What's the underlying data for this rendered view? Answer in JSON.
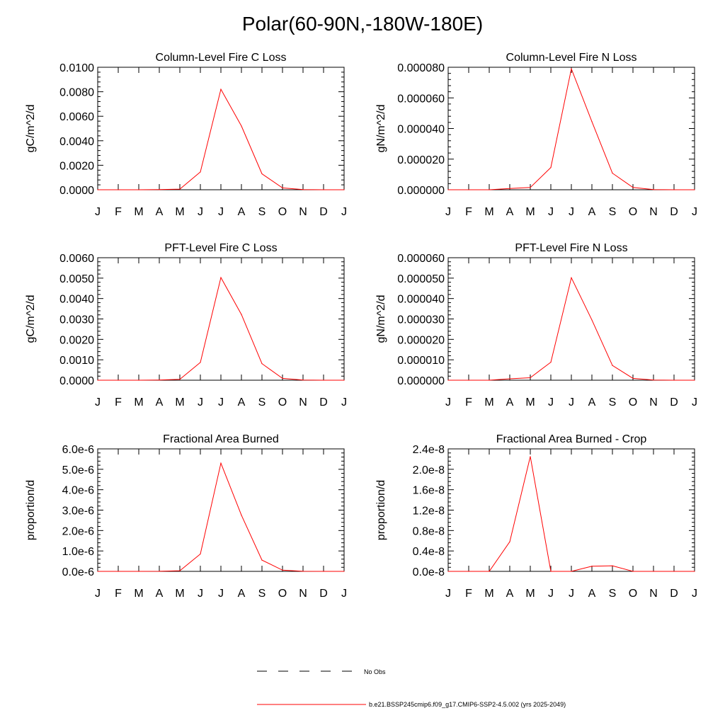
{
  "page": {
    "title": "Polar(60-90N,-180W-180E)"
  },
  "style": {
    "line_color": "#ff0000",
    "axis_color": "#000000",
    "obs_color": "#000000"
  },
  "legend": {
    "obs_label": "No Obs",
    "model_label": "b.e21.BSSP245cmip6.f09_g17.CMIP6-SSP2-4.5.002 (yrs 2025-2049)"
  },
  "chart_data": [
    {
      "type": "line",
      "title": "Column-Level Fire C Loss",
      "ylabel": "gC/m^2/d",
      "xlabel": "",
      "categories": [
        "J",
        "F",
        "M",
        "A",
        "M",
        "J",
        "J",
        "A",
        "S",
        "O",
        "N",
        "D",
        "J"
      ],
      "ylim": [
        0,
        0.01
      ],
      "yticks": [
        0,
        0.002,
        0.004,
        0.006,
        0.008,
        0.01
      ],
      "ytick_labels": [
        "0.0000",
        "0.0020",
        "0.0040",
        "0.0060",
        "0.0080",
        "0.0100"
      ],
      "series": [
        {
          "name": "b.e21.BSSP245cmip6.f09_g17.CMIP6-SSP2-4.5.002 (yrs 2025-2049)",
          "values": [
            0,
            0,
            0,
            1e-05,
            5e-05,
            0.00145,
            0.0082,
            0.0052,
            0.0013,
            0.00015,
            1e-05,
            0,
            0
          ]
        }
      ]
    },
    {
      "type": "line",
      "title": "Column-Level Fire N Loss",
      "ylabel": "gN/m^2/d",
      "xlabel": "",
      "categories": [
        "J",
        "F",
        "M",
        "A",
        "M",
        "J",
        "J",
        "A",
        "S",
        "O",
        "N",
        "D",
        "J"
      ],
      "ylim": [
        0,
        8e-05
      ],
      "yticks": [
        0,
        2e-05,
        4e-05,
        6e-05,
        8e-05
      ],
      "ytick_labels": [
        "0.000000",
        "0.000020",
        "0.000040",
        "0.000060",
        "0.000080"
      ],
      "series": [
        {
          "name": "b.e21.BSSP245cmip6.f09_g17.CMIP6-SSP2-4.5.002 (yrs 2025-2049)",
          "values": [
            0,
            0,
            0,
            8e-07,
            1.5e-06,
            1.45e-05,
            7.9e-05,
            4.45e-05,
            1.08e-05,
            1.5e-06,
            1e-07,
            0,
            0
          ]
        }
      ]
    },
    {
      "type": "line",
      "title": "PFT-Level Fire C Loss",
      "ylabel": "gC/m^2/d",
      "xlabel": "",
      "categories": [
        "J",
        "F",
        "M",
        "A",
        "M",
        "J",
        "J",
        "A",
        "S",
        "O",
        "N",
        "D",
        "J"
      ],
      "ylim": [
        0,
        0.006
      ],
      "yticks": [
        0,
        0.001,
        0.002,
        0.003,
        0.004,
        0.005,
        0.006
      ],
      "ytick_labels": [
        "0.0000",
        "0.0010",
        "0.0020",
        "0.0030",
        "0.0040",
        "0.0050",
        "0.0060"
      ],
      "series": [
        {
          "name": "b.e21.BSSP245cmip6.f09_g17.CMIP6-SSP2-4.5.002 (yrs 2025-2049)",
          "values": [
            0,
            0,
            0,
            1e-05,
            4e-05,
            0.00087,
            0.00503,
            0.00322,
            0.00081,
            9e-05,
            1e-05,
            0,
            0
          ]
        }
      ]
    },
    {
      "type": "line",
      "title": "PFT-Level Fire N Loss",
      "ylabel": "gN/m^2/d",
      "xlabel": "",
      "categories": [
        "J",
        "F",
        "M",
        "A",
        "M",
        "J",
        "J",
        "A",
        "S",
        "O",
        "N",
        "D",
        "J"
      ],
      "ylim": [
        0,
        6e-05
      ],
      "yticks": [
        0,
        1e-05,
        2e-05,
        3e-05,
        4e-05,
        5e-05,
        6e-05
      ],
      "ytick_labels": [
        "0.000000",
        "0.000010",
        "0.000020",
        "0.000030",
        "0.000040",
        "0.000050",
        "0.000060"
      ],
      "series": [
        {
          "name": "b.e21.BSSP245cmip6.f09_g17.CMIP6-SSP2-4.5.002 (yrs 2025-2049)",
          "values": [
            0,
            0,
            0,
            7e-07,
            1.2e-06,
            8.8e-06,
            5.02e-05,
            2.95e-05,
            7.2e-06,
            9e-07,
            1e-07,
            0,
            0
          ]
        }
      ]
    },
    {
      "type": "line",
      "title": "Fractional Area Burned",
      "ylabel": "proportion/d",
      "xlabel": "",
      "categories": [
        "J",
        "F",
        "M",
        "A",
        "M",
        "J",
        "J",
        "A",
        "S",
        "O",
        "N",
        "D",
        "J"
      ],
      "ylim": [
        0,
        6e-06
      ],
      "yticks": [
        0,
        1e-06,
        2e-06,
        3e-06,
        4e-06,
        5e-06,
        6e-06
      ],
      "ytick_labels": [
        "0.0e-6",
        "1.0e-6",
        "2.0e-6",
        "3.0e-6",
        "4.0e-6",
        "5.0e-6",
        "6.0e-6"
      ],
      "series": [
        {
          "name": "b.e21.BSSP245cmip6.f09_g17.CMIP6-SSP2-4.5.002 (yrs 2025-2049)",
          "values": [
            0,
            0,
            0,
            5e-09,
            3e-08,
            8.5e-07,
            5.3e-06,
            2.75e-06,
            5.5e-07,
            6e-08,
            5e-09,
            0,
            0
          ]
        }
      ]
    },
    {
      "type": "line",
      "title": "Fractional Area Burned - Crop",
      "ylabel": "proportion/d",
      "xlabel": "",
      "categories": [
        "J",
        "F",
        "M",
        "A",
        "M",
        "J",
        "J",
        "A",
        "S",
        "O",
        "N",
        "D",
        "J"
      ],
      "ylim": [
        0,
        2.4e-08
      ],
      "yticks": [
        0,
        4e-09,
        8e-09,
        1.2e-08,
        1.6e-08,
        2e-08,
        2.4e-08
      ],
      "ytick_labels": [
        "0.0e-8",
        "0.4e-8",
        "0.8e-8",
        "1.2e-8",
        "1.6e-8",
        "2.0e-8",
        "2.4e-8"
      ],
      "series": [
        {
          "name": "b.e21.BSSP245cmip6.f09_g17.CMIP6-SSP2-4.5.002 (yrs 2025-2049)",
          "values": [
            0,
            0,
            0,
            5.8e-09,
            2.25e-08,
            0,
            0,
            1e-09,
            1.1e-09,
            0,
            0,
            0,
            0
          ]
        }
      ]
    }
  ]
}
